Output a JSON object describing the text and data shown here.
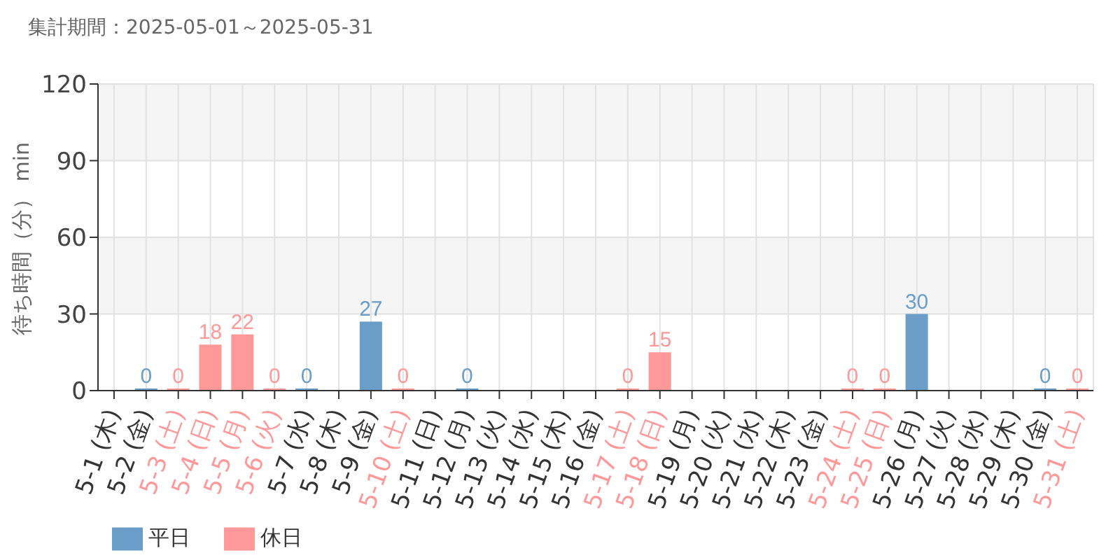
{
  "chart_data": {
    "type": "bar",
    "title": "集計期間：2025-05-01～2025-05-31",
    "ylabel": "待ち時間（分） min",
    "categories": [
      "5-1 (木)",
      "5-2 (金)",
      "5-3 (土)",
      "5-4 (日)",
      "5-5 (月)",
      "5-6 (火)",
      "5-7 (水)",
      "5-8 (木)",
      "5-9 (金)",
      "5-10 (土)",
      "5-11 (日)",
      "5-12 (月)",
      "5-13 (火)",
      "5-14 (水)",
      "5-15 (木)",
      "5-16 (金)",
      "5-17 (土)",
      "5-18 (日)",
      "5-19 (月)",
      "5-20 (火)",
      "5-21 (水)",
      "5-22 (木)",
      "5-23 (金)",
      "5-24 (土)",
      "5-25 (日)",
      "5-26 (月)",
      "5-27 (火)",
      "5-28 (水)",
      "5-29 (木)",
      "5-30 (金)",
      "5-31 (土)"
    ],
    "series": [
      {
        "name": "平日",
        "color": "#6a9ec8",
        "values": [
          null,
          0,
          null,
          null,
          null,
          null,
          0,
          null,
          27,
          null,
          null,
          0,
          null,
          null,
          null,
          null,
          null,
          null,
          null,
          null,
          null,
          null,
          null,
          null,
          null,
          30,
          null,
          null,
          null,
          0,
          null
        ]
      },
      {
        "name": "休日",
        "color": "#ff9999",
        "values": [
          null,
          null,
          0,
          18,
          22,
          0,
          null,
          null,
          null,
          0,
          null,
          null,
          null,
          null,
          null,
          null,
          0,
          15,
          null,
          null,
          null,
          null,
          null,
          0,
          0,
          null,
          null,
          null,
          null,
          null,
          0
        ]
      }
    ],
    "stacked": true,
    "ylim": [
      0,
      120
    ],
    "yticks": [
      0,
      30,
      60,
      90,
      120
    ],
    "grid": true,
    "legend": "bottom",
    "data_labels": true
  }
}
